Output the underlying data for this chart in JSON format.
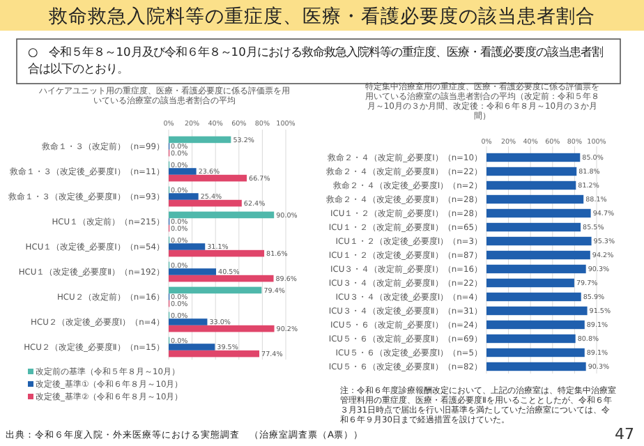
{
  "chart_data": [
    {
      "type": "bar",
      "orientation": "horizontal",
      "title": "ハイケアユニット用の重症度、医療・看護必要度に係る評価票を用いている治療室の該当患者割合の平均",
      "categories": [
        "救命１・３（改定前）（n=99）",
        "救命１・３（改定後_必要度Ⅰ）（n=11）",
        "救命１・３（改定後_必要度Ⅱ）（n=93）",
        "HCU１（改定前）（n=215）",
        "HCU１（改定後_必要度Ⅰ）（n=54）",
        "HCU１（改定後_必要度Ⅱ）（n=192）",
        "HCU２（改定前）（n=16）",
        "HCU２（改定後_必要度Ⅰ）（n=4）",
        "HCU２（改定後_必要度Ⅱ）（n=15）"
      ],
      "series": [
        {
          "name": "改定前の基準（令和５年８月～10月）",
          "color": "#4fb8ab",
          "values": [
            53.2,
            0.0,
            0.0,
            90.0,
            0.0,
            0.0,
            79.4,
            0.0,
            0.0
          ],
          "value_labels": [
            "53.2%",
            "0.0%",
            "0.0%",
            "90.0%",
            "0.0%",
            "0.0%",
            "79.4%",
            "0.0%",
            "0.0%"
          ]
        },
        {
          "name": "改定後_基準①（令和６年８月～10月）",
          "color": "#1f5fae",
          "values": [
            0.0,
            23.6,
            25.4,
            0.0,
            31.1,
            40.5,
            0.0,
            33.0,
            39.5
          ],
          "value_labels": [
            "0.0%",
            "23.6%",
            "25.4%",
            "0.0%",
            "31.1%",
            "40.5%",
            "0.0%",
            "33.0%",
            "39.5%"
          ]
        },
        {
          "name": "改定後_基準②（令和６年８月～10月）",
          "color": "#e0456a",
          "values": [
            0.0,
            66.7,
            62.4,
            0.0,
            81.6,
            89.6,
            0.0,
            90.2,
            77.4
          ],
          "value_labels": [
            "0.0%",
            "66.7%",
            "62.4%",
            "0.0%",
            "81.6%",
            "89.6%",
            "0.0%",
            "90.2%",
            "77.4%"
          ]
        }
      ],
      "xlim": [
        0,
        100
      ],
      "xticks": [
        {
          "value": 0,
          "label": "0%"
        },
        {
          "value": 20,
          "label": "20%"
        },
        {
          "value": 40,
          "label": "40%"
        },
        {
          "value": 60,
          "label": "60%"
        },
        {
          "value": 80,
          "label": "80%"
        },
        {
          "value": 100,
          "label": "100%"
        }
      ],
      "grid": "x",
      "legend": "bottom",
      "annotations": [
        "救命救急入院料等の重症度、医療・看護必要度の該当患者割合",
        "○　令和５年８～10月及び令和６年８～10月における救命救急入院料等の重症度、医療・看護必要度の該当患者割合は以下のとおり。",
        "出典：令和６年度入院・外来医療等における実態調査　（治療室調査票（A票））"
      ]
    },
    {
      "type": "bar",
      "orientation": "horizontal",
      "title": "特定集中治療室用の重症度、医療・看護必要度に係る評価票を用いている治療室の該当患者割合の平均（改定前：令和５年８月～10月の３か月間、改定後：令和６年８月～10月の３か月間）",
      "categories": [
        "救命２・４（改定前_必要度Ⅰ）（n=10）",
        "救命２・４（改定前_必要度Ⅱ）（n=22）",
        "救命２・４（改定後_必要度Ⅰ）（n=2）",
        "救命２・４（改定後_必要度Ⅱ）（n=28）",
        "ICU１・２（改定前_必要度Ⅰ）（n=28）",
        "ICU１・２（改定前_必要度Ⅱ）（n=65）",
        "ICU１・２（改定後_必要度Ⅰ）（n=3）",
        "ICU１・２（改定後_必要度Ⅱ）（n=87）",
        "ICU３・４（改定前_必要度Ⅰ）（n=16）",
        "ICU３・４（改定前_必要度Ⅱ）（n=22）",
        "ICU３・４（改定後_必要度Ⅰ）（n=4）",
        "ICU３・４（改定後_必要度Ⅱ）（n=31）",
        "ICU５・６（改定前_必要度Ⅰ）（n=24）",
        "ICU５・６（改定前_必要度Ⅱ）（n=69）",
        "ICU５・６（改定後_必要度Ⅰ）（n=5）",
        "ICU５・６（改定後_必要度Ⅱ）（n=82）"
      ],
      "series": [
        {
          "color": "#1f5fae",
          "values": [
            85.0,
            81.8,
            81.2,
            88.1,
            94.7,
            85.5,
            95.3,
            94.2,
            90.3,
            79.7,
            85.9,
            91.5,
            89.1,
            80.8,
            89.1,
            90.3
          ],
          "value_labels": [
            "85.0%",
            "81.8%",
            "81.2%",
            "88.1%",
            "94.7%",
            "85.5%",
            "95.3%",
            "94.2%",
            "90.3%",
            "79.7%",
            "85.9%",
            "91.5%",
            "89.1%",
            "80.8%",
            "89.1%",
            "90.3%"
          ]
        }
      ],
      "xlim": [
        0,
        100
      ],
      "xticks": [
        {
          "value": 0,
          "label": "0%"
        },
        {
          "value": 20,
          "label": "20%"
        },
        {
          "value": 40,
          "label": "40%"
        },
        {
          "value": 60,
          "label": "60%"
        },
        {
          "value": 80,
          "label": "80%"
        },
        {
          "value": 100,
          "label": "100%"
        }
      ],
      "grid": "x",
      "legend": false,
      "annotations": [
        "注：令和６年度診療報酬改定において、上記の治療室は、特定集中治療室管理料用の重症度、医療・看護必要度Ⅱを用いることとしたが、令和６年３月31日時点で届出を行い旧基準を満たしていた治療室については、令和６年９月30日まで経過措置を設けていた。",
        "47"
      ]
    }
  ]
}
